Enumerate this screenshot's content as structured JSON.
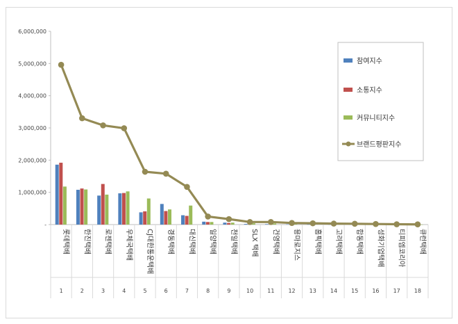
{
  "chart_data": {
    "type": "bar",
    "categories": [
      "롯데택배",
      "한진택배",
      "로젠택배",
      "우체국택배",
      "CJ대한통운택배",
      "경동택배",
      "대신택배",
      "일양택배",
      "천일택배",
      "SLX 택배",
      "건영택배",
      "용마로지스",
      "홈픽택배",
      "고려택배",
      "합동택배",
      "성화기업택배",
      "티피엠코리아",
      "큐런택배"
    ],
    "index_labels": [
      "1",
      "2",
      "3",
      "4",
      "5",
      "6",
      "7",
      "8",
      "9",
      "10",
      "11",
      "12",
      "13",
      "14",
      "15",
      "16",
      "17",
      "18"
    ],
    "ylim": [
      0,
      6000000
    ],
    "yticks": [
      0,
      1000000,
      2000000,
      3000000,
      4000000,
      5000000,
      6000000
    ],
    "ytick_labels": [
      "-",
      "1,000,000",
      "2,000,000",
      "3,000,000",
      "4,000,000",
      "5,000,000",
      "6,000,000"
    ],
    "legend_position": "top-right",
    "series": [
      {
        "name": "참여지수",
        "kind": "bar",
        "color": "#4f81bd",
        "values": [
          1860000,
          1080000,
          900000,
          970000,
          380000,
          640000,
          290000,
          90000,
          60000,
          20000,
          15000,
          10000,
          8000,
          6000,
          5000,
          4000,
          3000,
          2000
        ]
      },
      {
        "name": "소통지수",
        "kind": "bar",
        "color": "#c0504d",
        "values": [
          1920000,
          1120000,
          1260000,
          980000,
          410000,
          420000,
          270000,
          80000,
          50000,
          15000,
          12000,
          8000,
          6000,
          5000,
          4000,
          3000,
          2000,
          1000
        ]
      },
      {
        "name": "커뮤니티지수",
        "kind": "bar",
        "color": "#9bbb59",
        "values": [
          1180000,
          1090000,
          930000,
          1030000,
          810000,
          470000,
          590000,
          80000,
          60000,
          40000,
          35000,
          30000,
          25000,
          20000,
          15000,
          10000,
          5000,
          3000
        ]
      },
      {
        "name": "브랜드평판지수",
        "kind": "line",
        "color": "#948a54",
        "values": [
          4960000,
          3300000,
          3080000,
          2990000,
          1640000,
          1580000,
          1170000,
          250000,
          170000,
          80000,
          80000,
          50000,
          40000,
          30000,
          25000,
          18000,
          10000,
          6000
        ]
      }
    ]
  }
}
